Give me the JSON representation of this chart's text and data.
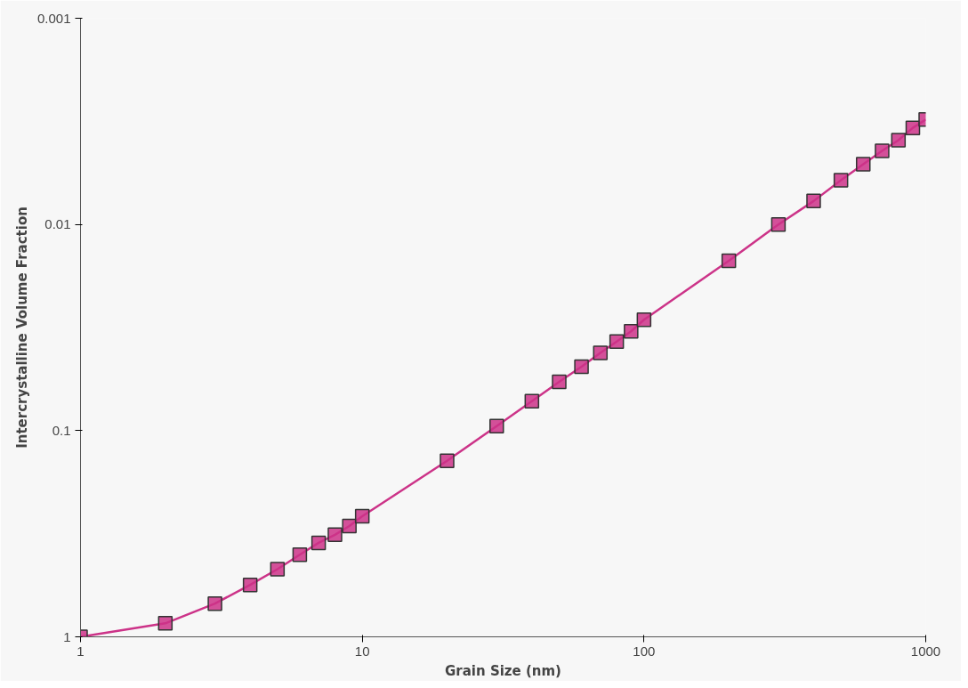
{
  "chart_data": {
    "type": "line",
    "xlabel": "Grain Size (nm)",
    "ylabel": "Intercrystalline Volume Fraction",
    "x": [
      1,
      2,
      3,
      4,
      5,
      6,
      7,
      8,
      9,
      10,
      20,
      30,
      40,
      50,
      60,
      70,
      80,
      90,
      100,
      200,
      300,
      400,
      500,
      600,
      700,
      800,
      900,
      1000
    ],
    "series": [
      {
        "color": "#cc3388",
        "values": [
          1,
          0.86,
          0.69,
          0.56,
          0.47,
          0.4,
          0.35,
          0.32,
          0.29,
          0.26,
          0.14,
          0.095,
          0.072,
          0.058,
          0.049,
          0.042,
          0.037,
          0.033,
          0.029,
          0.015,
          0.01,
          0.0077,
          0.0061,
          0.0051,
          0.0044,
          0.0039,
          0.0034,
          0.0031
        ]
      }
    ],
    "log": "xy",
    "xlim": [
      1,
      1000
    ],
    "ylim": [
      1,
      0.001
    ],
    "xticks": [
      1,
      10,
      100,
      1000
    ],
    "yticks": [
      1,
      0.1,
      0.01,
      0.001
    ],
    "grid": false,
    "marker": "square",
    "line_style": "solid"
  }
}
